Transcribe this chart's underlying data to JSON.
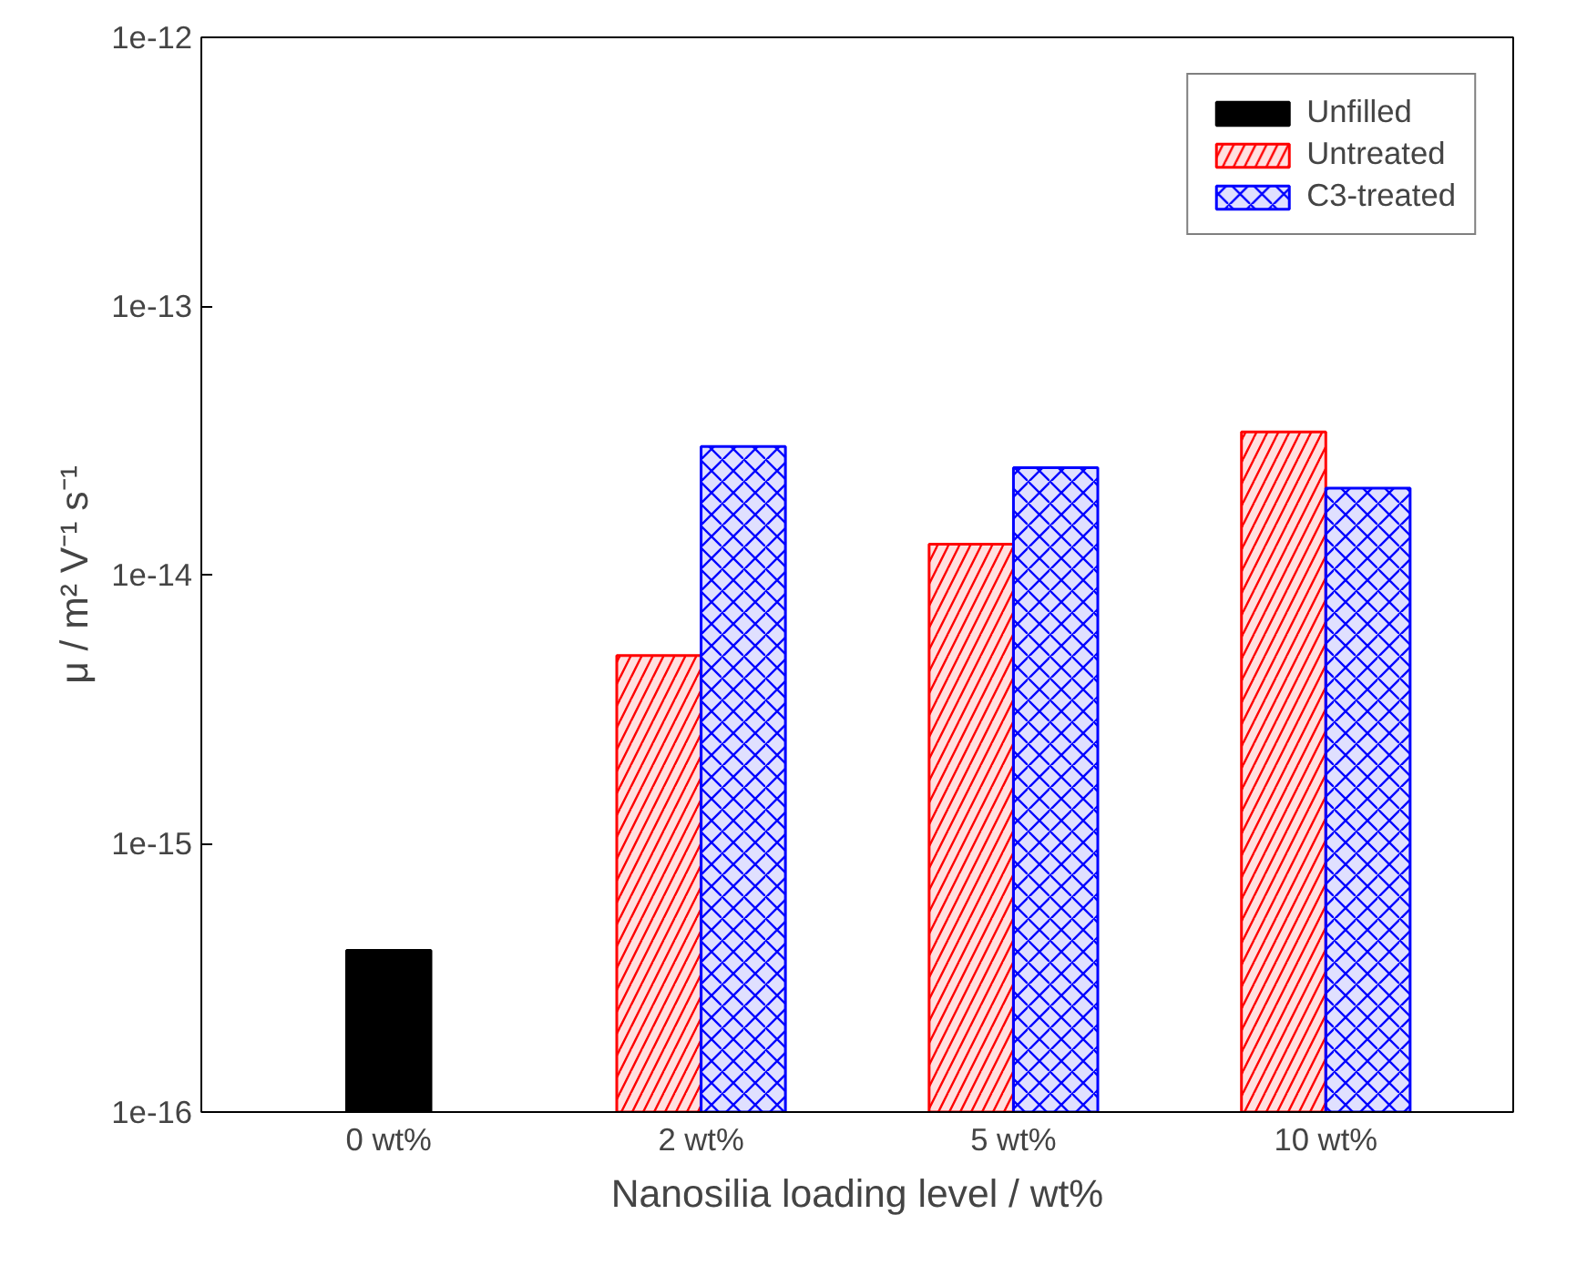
{
  "chart_data": {
    "type": "bar",
    "xlabel": "Nanosilia loading level / wt%",
    "ylabel": "μ / m² V⁻¹ s⁻¹",
    "categories": [
      "0 wt%",
      "2 wt%",
      "5 wt%",
      "10 wt%"
    ],
    "series": [
      {
        "name": "Unfilled",
        "color": "#000000",
        "values": [
          4e-16,
          null,
          null,
          null
        ]
      },
      {
        "name": "Untreated",
        "color": "#ff0000",
        "values": [
          null,
          5e-15,
          1.3e-14,
          3.4e-14
        ]
      },
      {
        "name": "C3-treated",
        "color": "#0000ff",
        "values": [
          null,
          3e-14,
          2.5e-14,
          2.1e-14
        ]
      }
    ],
    "log": "y",
    "ylim": [
      1e-16,
      1e-12
    ],
    "yticks": [
      {
        "value": 1e-16,
        "label": "1e-16"
      },
      {
        "value": 1e-15,
        "label": "1e-15"
      },
      {
        "value": 1e-14,
        "label": "1e-14"
      },
      {
        "value": 1e-13,
        "label": "1e-13"
      },
      {
        "value": 1e-12,
        "label": "1e-12"
      }
    ],
    "legend": "top right",
    "grid": false
  }
}
